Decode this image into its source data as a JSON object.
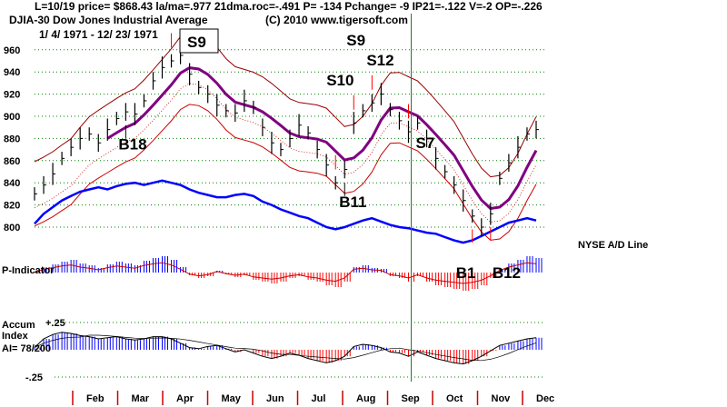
{
  "header": {
    "line1": "L=10/19  price= $868.43  la/ma=.977 21dma.roc=-.491 P= -134 Pchange= -9 IP21=-.122 V=-2 OP=-.226",
    "line2_left": "DJIA-30  Dow Jones Industrial Average",
    "line2_right": "(C) 2010 www.tigersoft.com",
    "line3": "1/ 4/ 1971 - 12/ 23/ 1971"
  },
  "colors": {
    "price": "#000000",
    "ma": "#800080",
    "band": "#cc0000",
    "adline": "#0000ff",
    "grid": "#008000",
    "pos": "#0000ff",
    "neg": "#ff0000",
    "marker": "#2a7a2a"
  },
  "chart_data": {
    "type": "line",
    "title": "DJIA-30 Dow Jones Industrial Average",
    "ylim": [
      800,
      960
    ],
    "yticks": [
      800,
      820,
      840,
      860,
      880,
      900,
      920,
      940,
      960
    ],
    "months": [
      "Feb",
      "Mar",
      "Apr",
      "May",
      "Jun",
      "Jul",
      "Aug",
      "Sep",
      "Oct",
      "Nov",
      "Dec"
    ],
    "close": [
      830,
      838,
      848,
      862,
      872,
      880,
      884,
      876,
      888,
      898,
      904,
      902,
      914,
      932,
      944,
      950,
      955,
      938,
      926,
      920,
      910,
      905,
      903,
      914,
      908,
      890,
      876,
      870,
      880,
      892,
      885,
      870,
      856,
      840,
      852,
      894,
      905,
      912,
      920,
      906,
      896,
      886,
      894,
      880,
      862,
      850,
      838,
      824,
      810,
      800,
      812,
      844,
      858,
      872,
      884,
      888
    ],
    "ad_line_label": "NYSE A/D Line",
    "ad_line": [
      803,
      812,
      818,
      824,
      828,
      832,
      834,
      836,
      834,
      837,
      839,
      840,
      838,
      840,
      842,
      840,
      838,
      834,
      831,
      829,
      827,
      827,
      829,
      830,
      828,
      823,
      820,
      816,
      813,
      810,
      808,
      804,
      800,
      798,
      800,
      803,
      806,
      808,
      805,
      802,
      800,
      799,
      797,
      795,
      794,
      791,
      788,
      786,
      788,
      792,
      796,
      800,
      804,
      806,
      808,
      806
    ],
    "p_indicator_label": "P-Indicator",
    "p_indicator": [
      0,
      6,
      9,
      12,
      14,
      10,
      8,
      5,
      9,
      12,
      10,
      8,
      13,
      16,
      18,
      14,
      6,
      -3,
      -6,
      -4,
      2,
      -2,
      -5,
      -3,
      -8,
      -10,
      -12,
      -10,
      -6,
      -4,
      -8,
      -10,
      -14,
      -16,
      -10,
      6,
      8,
      5,
      4,
      -4,
      -6,
      -10,
      -4,
      -10,
      -14,
      -16,
      -18,
      -20,
      -18,
      -14,
      -6,
      4,
      10,
      14,
      18,
      16
    ],
    "accum_label": "Accum Index",
    "accum_ai": "AI= 78/200",
    "accum_ticks": [
      "+.25",
      "-.25"
    ],
    "accum": [
      0.02,
      0.1,
      0.14,
      0.16,
      0.15,
      0.13,
      0.12,
      0.1,
      0.11,
      0.12,
      0.1,
      0.09,
      0.1,
      0.12,
      0.12,
      0.1,
      0.06,
      0.02,
      0.01,
      0.03,
      0.04,
      0.01,
      -0.02,
      0.0,
      -0.03,
      -0.06,
      -0.08,
      -0.06,
      -0.03,
      -0.05,
      -0.08,
      -0.1,
      -0.12,
      -0.1,
      -0.06,
      0.03,
      0.05,
      0.04,
      0.02,
      -0.02,
      -0.03,
      -0.06,
      -0.02,
      -0.05,
      -0.08,
      -0.1,
      -0.12,
      -0.13,
      -0.1,
      -0.06,
      -0.01,
      0.04,
      0.06,
      0.08,
      0.1,
      0.11
    ],
    "signals": [
      {
        "label": "S9",
        "week": 15,
        "type": "sell",
        "boxed": true
      },
      {
        "label": "B18",
        "week": 10,
        "type": "buy"
      },
      {
        "label": "S10",
        "week": 33,
        "type": "sell"
      },
      {
        "label": "S9",
        "week": 35,
        "type": "sell"
      },
      {
        "label": "S12",
        "week": 37,
        "type": "sell"
      },
      {
        "label": "B11",
        "week": 34,
        "type": "buy"
      },
      {
        "label": "S7",
        "week": 41,
        "type": "sell"
      },
      {
        "label": "B1",
        "week": 48,
        "type": "buy"
      },
      {
        "label": "B12",
        "week": 50,
        "type": "buy"
      }
    ],
    "marker_week": 41
  }
}
